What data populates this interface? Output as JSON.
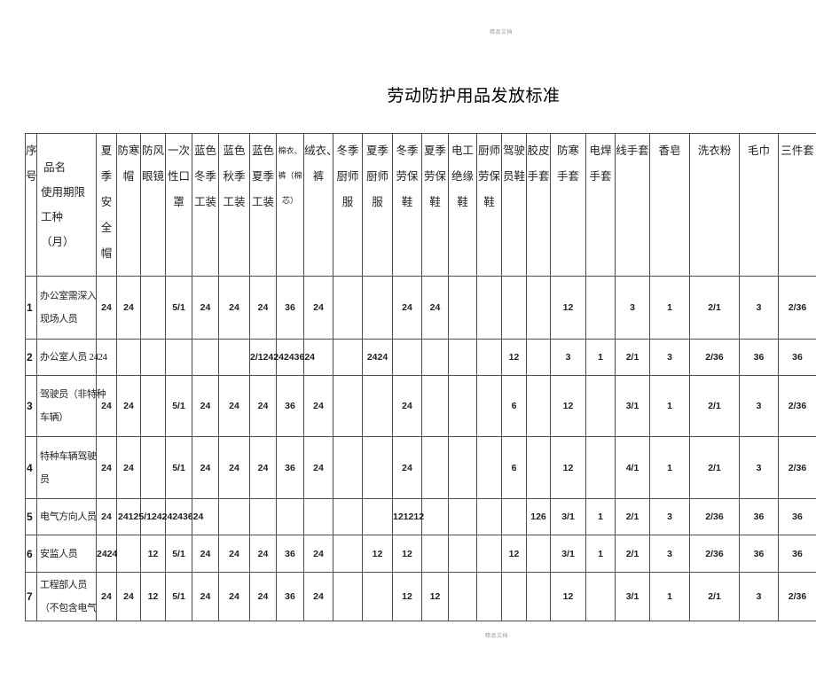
{
  "page": {
    "title": "劳动防护用品发放标准",
    "header_note": "精品文档",
    "footer_note": "精品文档",
    "background_color": "#ffffff",
    "border_color": "#4d4d4d"
  },
  "table": {
    "corner_header": "序\n号",
    "name_header": " 品名\n使用期限\n工种\n（月）",
    "columns": [
      "夏\n季\n安\n全\n帽",
      "防寒\n帽",
      "防风\n眼镜",
      "一次\n性口\n罩",
      "蓝色\n冬季\n工装",
      "蓝色\n秋季\n工装",
      "蓝色\n夏季\n工装",
      "棉衣、\n裤（棉\n芯）",
      "绒衣、\n裤",
      "冬季\n厨师\n服",
      "夏季\n厨师\n服",
      "冬季\n劳保\n鞋",
      "夏季\n劳保\n鞋",
      "电工\n绝缘\n鞋",
      "厨师\n劳保\n鞋",
      "驾驶\n员鞋",
      "胶皮\n手套",
      "防寒\n手套",
      "电焊\n手套",
      "线手套",
      "香皂",
      "洗衣粉",
      "毛巾",
      "三件套"
    ],
    "rows": [
      {
        "seq": "1",
        "name": "办公室需深入\n现场人员",
        "values": [
          "24",
          "24",
          "",
          "5/1",
          "24",
          "24",
          "24",
          "36",
          "24",
          "",
          "",
          "24",
          "24",
          "",
          "",
          "",
          "",
          "12",
          "",
          "3",
          "1",
          "2/1",
          "3",
          "2/36"
        ]
      },
      {
        "seq": "2",
        "name": "办公室人员 2424",
        "values": [
          "",
          "",
          "",
          "",
          "",
          "",
          "2/12424243624",
          "",
          "",
          "",
          "2424",
          "",
          "",
          "",
          "",
          "12",
          "",
          "3",
          "1",
          "2/1",
          "3",
          "2/36",
          "36",
          "36"
        ]
      },
      {
        "seq": "3",
        "name": "驾驶员（非特种\n车辆）",
        "values": [
          "24",
          "24",
          "",
          "5/1",
          "24",
          "24",
          "24",
          "36",
          "24",
          "",
          "",
          "24",
          "",
          "",
          "",
          "6",
          "",
          "12",
          "",
          "3/1",
          "1",
          "2/1",
          "3",
          "2/36"
        ]
      },
      {
        "seq": "4",
        "name": "特种车辆驾驶\n员",
        "values": [
          "24",
          "24",
          "",
          "5/1",
          "24",
          "24",
          "24",
          "36",
          "24",
          "",
          "",
          "24",
          "",
          "",
          "",
          "6",
          "",
          "12",
          "",
          "4/1",
          "1",
          "2/1",
          "3",
          "2/36"
        ]
      },
      {
        "seq": "5",
        "name": "电气方向人员",
        "values": [
          "24",
          "24125/12424243624",
          "",
          "",
          "",
          "",
          "",
          "",
          "",
          "",
          "",
          "121212",
          "",
          "",
          "",
          "",
          "126",
          "3/1",
          "1",
          "2/1",
          "3",
          "2/36",
          "36",
          "36"
        ]
      },
      {
        "seq": "6",
        "name": "安监人员",
        "values": [
          "2424",
          "",
          "12",
          "5/1",
          "24",
          "24",
          "24",
          "36",
          "24",
          "",
          "12",
          "12",
          "",
          "",
          "",
          "12",
          "",
          "3/1",
          "1",
          "2/1",
          "3",
          "2/36",
          "36",
          "36"
        ]
      },
      {
        "seq": "7",
        "name": "工程部人员\n（不包含电气",
        "values": [
          "24",
          "24",
          "12",
          "5/1",
          "24",
          "24",
          "24",
          "36",
          "24",
          "",
          "",
          "12",
          "12",
          "",
          "",
          "",
          "",
          "12",
          "",
          "3/1",
          "1",
          "2/1",
          "3",
          "2/36"
        ]
      }
    ]
  }
}
